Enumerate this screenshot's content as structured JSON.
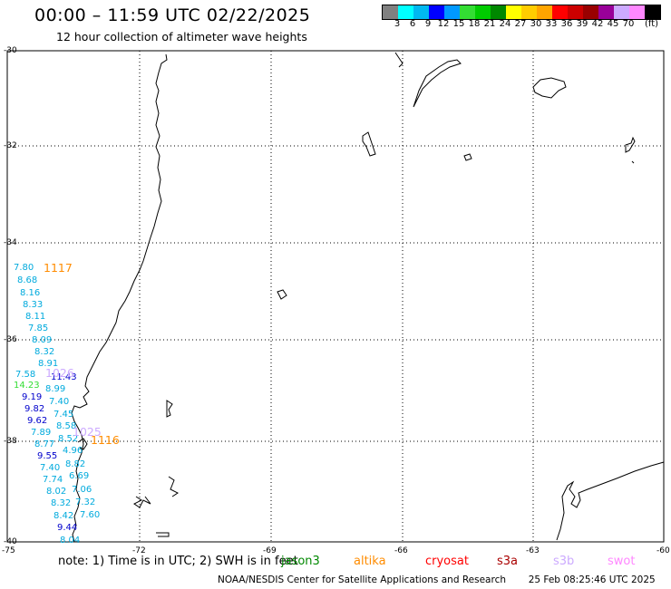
{
  "title": "00:00 – 11:59 UTC 02/22/2025",
  "subtitle": "12 hour collection of altimeter wave heights",
  "legend": {
    "colors": [
      "#808080",
      "#00ffff",
      "#00b8f0",
      "#0000ff",
      "#0099ff",
      "#33dd33",
      "#00cc00",
      "#008800",
      "#ffff00",
      "#ffcc00",
      "#ffa500",
      "#ff0000",
      "#cc0000",
      "#990000",
      "#990099",
      "#ccaaff",
      "#ff88ff",
      "#000000"
    ],
    "ticks": [
      "3",
      "6",
      "9",
      "12",
      "15",
      "18",
      "21",
      "24",
      "27",
      "30",
      "33",
      "36",
      "39",
      "42",
      "45",
      "70"
    ],
    "unit": "(ft)"
  },
  "axes": {
    "lat_labels": [
      "-30",
      "-32",
      "-34",
      "-36",
      "-38",
      "-40"
    ],
    "lon_labels": [
      "-75",
      "-72",
      "-69",
      "-66",
      "-63",
      "-60"
    ]
  },
  "wave_heights": [
    {
      "v": "7.80",
      "c": "#00aadd"
    },
    {
      "v": "8.68",
      "c": "#00aadd"
    },
    {
      "v": "8.16",
      "c": "#00aadd"
    },
    {
      "v": "8.33",
      "c": "#00aadd"
    },
    {
      "v": "8.11",
      "c": "#00aadd"
    },
    {
      "v": "7.85",
      "c": "#00aadd"
    },
    {
      "v": "8.09",
      "c": "#00aadd"
    },
    {
      "v": "8.32",
      "c": "#00aadd"
    },
    {
      "v": "8.91",
      "c": "#00aadd"
    },
    {
      "v": "7.58",
      "c": "#00aadd"
    },
    {
      "v": "11.43",
      "c": "#0000cc"
    },
    {
      "v": "14.23",
      "c": "#33dd33"
    },
    {
      "v": "8.99",
      "c": "#00aadd"
    },
    {
      "v": "9.19",
      "c": "#0000cc"
    },
    {
      "v": "7.40",
      "c": "#00aadd"
    },
    {
      "v": "9.82",
      "c": "#0000cc"
    },
    {
      "v": "7.45",
      "c": "#00aadd"
    },
    {
      "v": "9.62",
      "c": "#0000cc"
    },
    {
      "v": "8.58",
      "c": "#00aadd"
    },
    {
      "v": "7.89",
      "c": "#00aadd"
    },
    {
      "v": "8.52",
      "c": "#00aadd"
    },
    {
      "v": "8.77",
      "c": "#00aadd"
    },
    {
      "v": "4.96",
      "c": "#00aadd"
    },
    {
      "v": "9.55",
      "c": "#0000cc"
    },
    {
      "v": "7.40",
      "c": "#00aadd"
    },
    {
      "v": "8.82",
      "c": "#00aadd"
    },
    {
      "v": "7.74",
      "c": "#00aadd"
    },
    {
      "v": "6.69",
      "c": "#00aadd"
    },
    {
      "v": "8.02",
      "c": "#00aadd"
    },
    {
      "v": "7.06",
      "c": "#00aadd"
    },
    {
      "v": "8.32",
      "c": "#00aadd"
    },
    {
      "v": "7.32",
      "c": "#00aadd"
    },
    {
      "v": "8.42",
      "c": "#00aadd"
    },
    {
      "v": "7.60",
      "c": "#00aadd"
    },
    {
      "v": "9.44",
      "c": "#0000cc"
    },
    {
      "v": "8.04",
      "c": "#00aadd"
    }
  ],
  "pass_times": [
    {
      "v": "1117",
      "c": "#ff8c00"
    },
    {
      "v": "1026",
      "c": "#ccaaff"
    },
    {
      "v": "1025",
      "c": "#ccaaff"
    },
    {
      "v": "1116",
      "c": "#ff8c00"
    }
  ],
  "footer": {
    "note": "note: 1) Time is in UTC; 2) SWH is in feet",
    "satellites": [
      {
        "name": "jason3",
        "color": "#008800"
      },
      {
        "name": "altika",
        "color": "#ff8c00"
      },
      {
        "name": "cryosat",
        "color": "#ff0000"
      },
      {
        "name": "s3a",
        "color": "#aa0000"
      },
      {
        "name": "s3b",
        "color": "#ccaaff"
      },
      {
        "name": "swot",
        "color": "#ff88ff"
      }
    ],
    "credit": "NOAA/NESDIS Center for Satellite Applications and Research",
    "timestamp": "25 Feb 08:25:46 UTC 2025"
  }
}
